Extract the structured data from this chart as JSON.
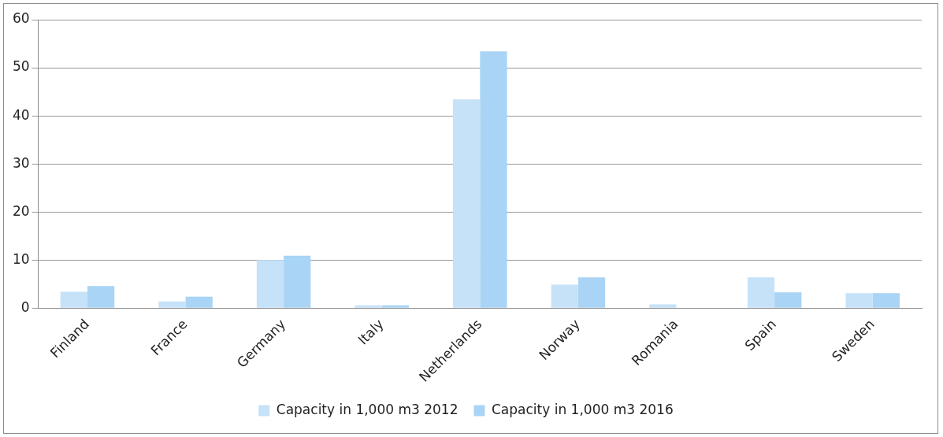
{
  "chart_data": {
    "type": "bar",
    "categories": [
      "Finland",
      "France",
      "Germany",
      "Italy",
      "Netherlands",
      "Norway",
      "Romania",
      "Spain",
      "Sweden"
    ],
    "series": [
      {
        "name": "Capacity in 1,000 m3 2012",
        "color": "#c6e2f8",
        "values": [
          3.4,
          1.4,
          10.0,
          0.6,
          43.4,
          4.9,
          0.8,
          6.4,
          3.1
        ]
      },
      {
        "name": "Capacity in 1,000 m3 2016",
        "color": "#a9d4f5",
        "values": [
          4.6,
          2.4,
          10.9,
          0.6,
          53.4,
          6.4,
          0,
          3.3,
          3.1
        ]
      }
    ],
    "ylim": [
      0,
      60
    ],
    "yticks": [
      0,
      10,
      20,
      30,
      40,
      50,
      60
    ],
    "grid": "y",
    "legend": "bottom"
  }
}
